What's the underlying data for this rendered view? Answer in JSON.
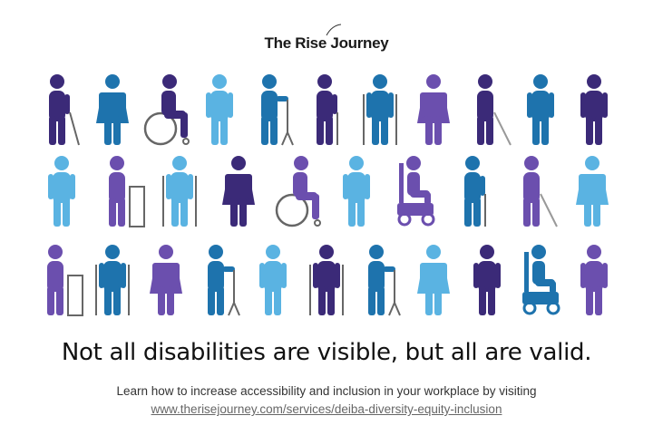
{
  "logo": {
    "text": "The Rise Journey"
  },
  "colors": {
    "dark": "#3b2a78",
    "blue": "#1e73ad",
    "light": "#5ab3e2",
    "purple": "#6b4fae"
  },
  "rows": [
    [
      [
        "cane",
        "dark"
      ],
      [
        "woman",
        "blue"
      ],
      [
        "wheelchair",
        "dark"
      ],
      [
        "standing",
        "light"
      ],
      [
        "stool-walker",
        "blue"
      ],
      [
        "cane-straight",
        "dark"
      ],
      [
        "crutches",
        "blue"
      ],
      [
        "woman",
        "purple"
      ],
      [
        "white-cane",
        "dark"
      ],
      [
        "standing",
        "blue"
      ],
      [
        "standing",
        "dark"
      ]
    ],
    [
      [
        "standing",
        "light"
      ],
      [
        "walker",
        "purple"
      ],
      [
        "crutches",
        "light"
      ],
      [
        "woman",
        "dark"
      ],
      [
        "wheelchair",
        "purple"
      ],
      [
        "standing",
        "light"
      ],
      [
        "power-wheelchair",
        "purple"
      ],
      [
        "cane-straight",
        "blue"
      ],
      [
        "white-cane",
        "purple"
      ],
      [
        "woman",
        "light"
      ]
    ],
    [
      [
        "walker",
        "purple"
      ],
      [
        "crutches",
        "blue"
      ],
      [
        "woman",
        "purple"
      ],
      [
        "stool-walker",
        "blue"
      ],
      [
        "standing",
        "light"
      ],
      [
        "crutches",
        "dark"
      ],
      [
        "stool-walker",
        "blue"
      ],
      [
        "woman",
        "light"
      ],
      [
        "standing",
        "dark"
      ],
      [
        "power-wheelchair",
        "blue"
      ],
      [
        "standing",
        "purple"
      ]
    ]
  ],
  "headline": "Not all disabilities are visible, but all are valid.",
  "subtext": "Learn how to increase accessibility and inclusion in your workplace by visiting",
  "link": "www.therisejourney.com/services/deiba-diversity-equity-inclusion"
}
